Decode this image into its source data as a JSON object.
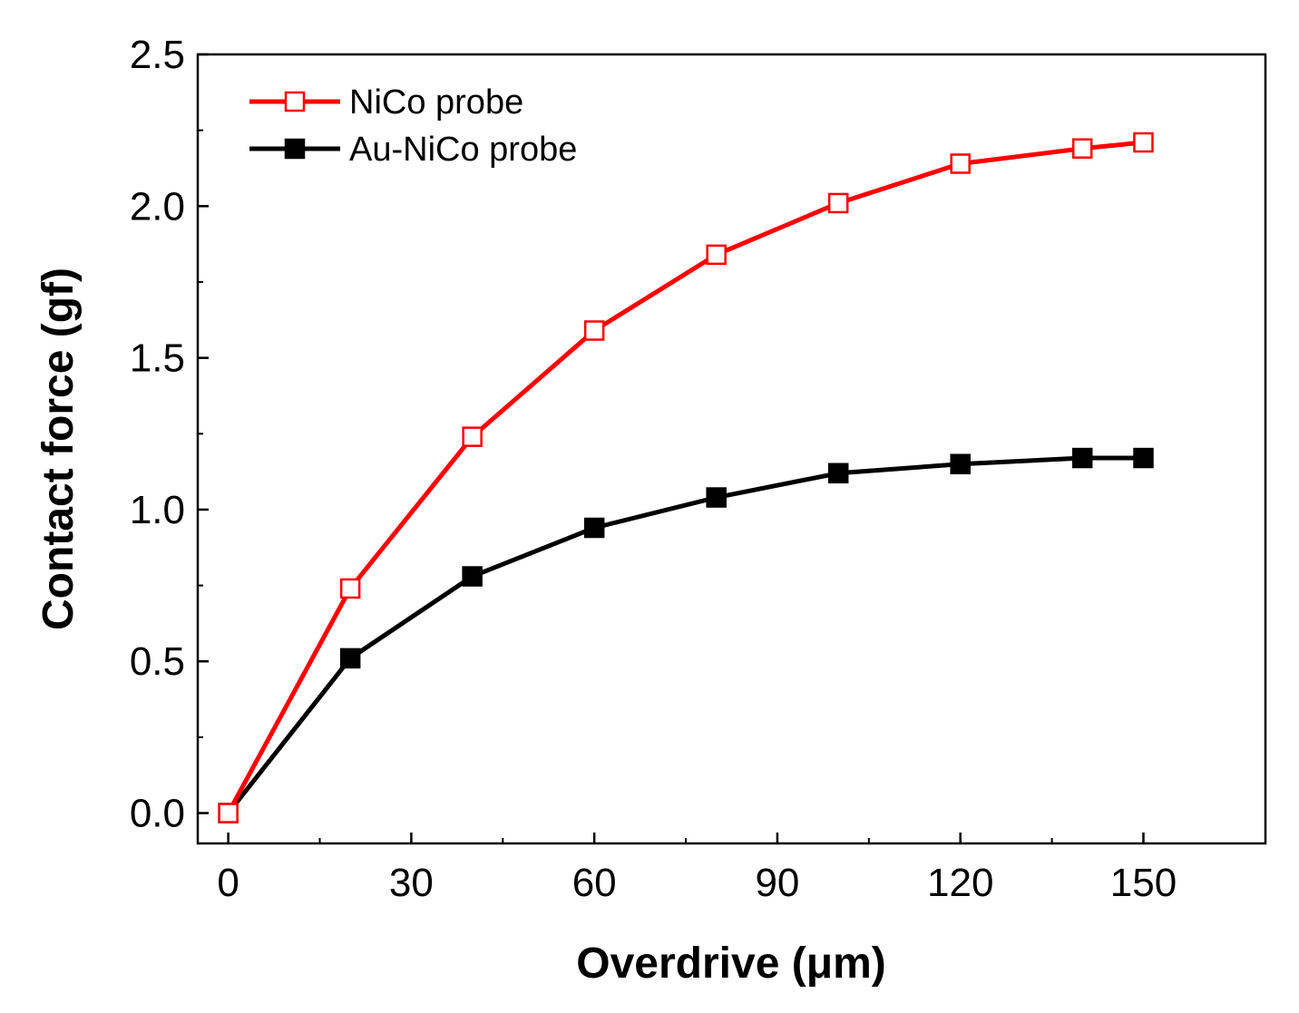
{
  "chart_data": {
    "type": "line",
    "title": "",
    "xlabel": "Overdrive (μm)",
    "ylabel": "Contact force (gf)",
    "xlim": [
      -5,
      170
    ],
    "ylim": [
      -0.1,
      2.5
    ],
    "x_ticks": [
      0,
      30,
      60,
      90,
      120,
      150
    ],
    "y_ticks": [
      0.0,
      0.5,
      1.0,
      1.5,
      2.0,
      2.5
    ],
    "x_tick_labels": [
      "0",
      "30",
      "60",
      "90",
      "120",
      "150"
    ],
    "y_tick_labels": [
      "0.0",
      "0.5",
      "1.0",
      "1.5",
      "2.0",
      "2.5"
    ],
    "grid": false,
    "legend_position": "top-left",
    "x": [
      0,
      20,
      40,
      60,
      80,
      100,
      120,
      140,
      150
    ],
    "series": [
      {
        "name": "NiCo probe",
        "color": "#ff0000",
        "marker": "open-square",
        "values": [
          0.0,
          0.74,
          1.24,
          1.59,
          1.84,
          2.01,
          2.14,
          2.19,
          2.21
        ]
      },
      {
        "name": "Au-NiCo probe",
        "color": "#000000",
        "marker": "filled-square",
        "values": [
          0.0,
          0.51,
          0.78,
          0.94,
          1.04,
          1.12,
          1.15,
          1.17,
          1.17
        ]
      }
    ]
  }
}
